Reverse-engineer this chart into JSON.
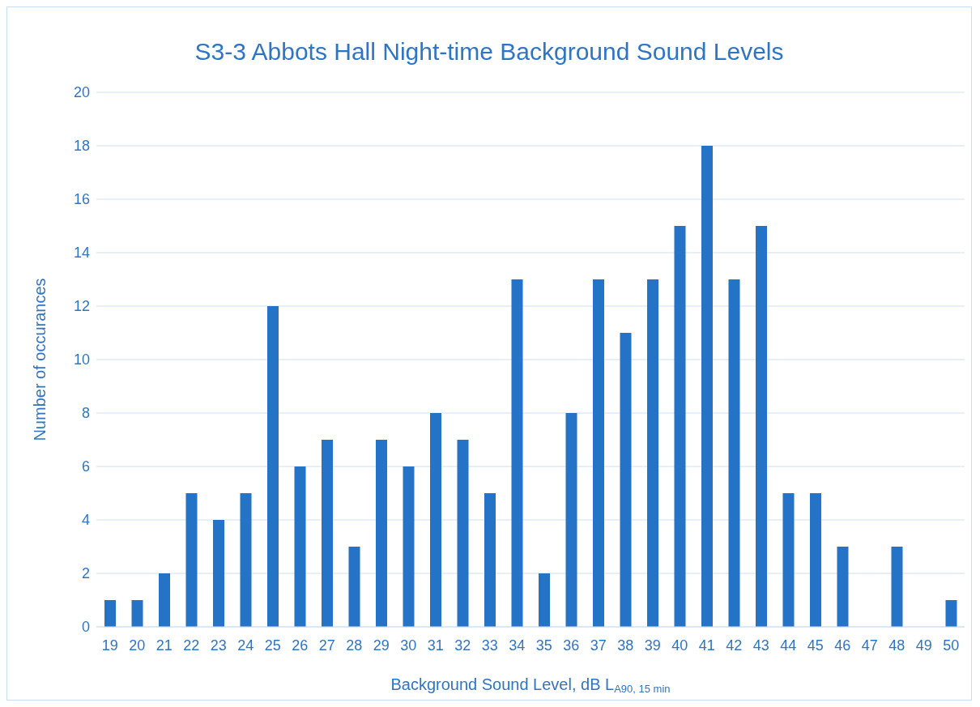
{
  "chart_data": {
    "type": "bar",
    "title": "S3-3 Abbots Hall Night-time Background Sound Levels",
    "xlabel": "Background Sound Level, dB L$_{A90, 15 min}$",
    "ylabel": "Number of occurances",
    "categories": [
      "19",
      "20",
      "21",
      "22",
      "23",
      "24",
      "25",
      "26",
      "27",
      "28",
      "29",
      "30",
      "31",
      "32",
      "33",
      "34",
      "35",
      "36",
      "37",
      "38",
      "39",
      "40",
      "41",
      "42",
      "43",
      "44",
      "45",
      "46",
      "47",
      "48",
      "49",
      "50"
    ],
    "values": [
      1,
      1,
      2,
      5,
      4,
      5,
      12,
      6,
      7,
      3,
      7,
      6,
      8,
      7,
      5,
      13,
      2,
      8,
      13,
      11,
      13,
      15,
      18,
      13,
      15,
      5,
      5,
      3,
      0,
      3,
      0,
      1
    ],
    "color": "#2473c6",
    "ylim": [
      0,
      20
    ],
    "yticks": [
      0,
      2,
      4,
      6,
      8,
      10,
      12,
      14,
      16,
      18,
      20
    ],
    "grid": "y"
  }
}
